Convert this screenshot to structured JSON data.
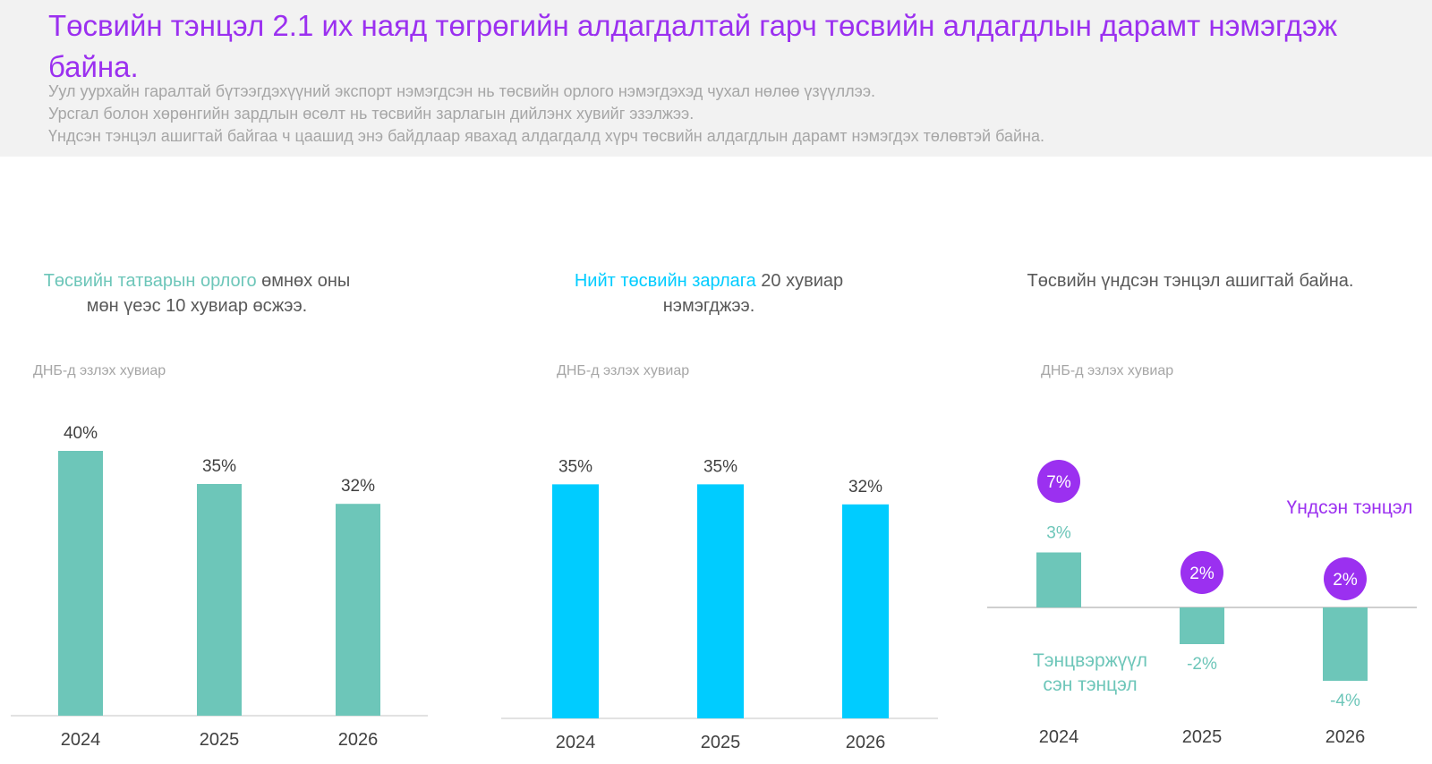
{
  "header": {
    "title": "Төсвийн тэнцэл 2.1 их наяд төгрөгийн алдагдалтай гарч төсвийн алдагдлын дарамт нэмэгдэж байна.",
    "subtitles": [
      "Уул уурхайн гаралтай бүтээгдэхүүний экспорт нэмэгдсэн нь төсвийн орлого нэмэгдэхэд чухал нөлөө үзүүллээ.",
      "Урсгал болон хөрөнгийн зардлын өсөлт нь төсвийн зарлагын дийлэнх хувийг эзэлжээ.",
      "Үндсэн тэнцэл ашигтай байгаа ч цаашид энэ байдлаар явахад алдагдалд хүрч төсвийн алдагдлын дарамт нэмэгдэх төлөвтэй байна."
    ]
  },
  "panels": {
    "revenue": {
      "title_highlight": "Төсвийн татварын орлого",
      "title_rest": " өмнөх оны мөн үеэс 10 хувиар өсжээ.",
      "unit": "ДНБ-д эзлэх хувиар"
    },
    "expenditure": {
      "title_highlight": "Нийт төсвийн зарлага",
      "title_rest": " 20 хувиар нэмэгджээ.",
      "unit": "ДНБ-д эзлэх хувиар"
    },
    "balance": {
      "title": "Төсвийн үндсэн тэнцэл ашигтай байна.",
      "unit": "ДНБ-д эзлэх хувиар"
    }
  },
  "colors": {
    "title": "#9b30f0",
    "teal": "#6dc6b9",
    "cyan": "#00ccff",
    "purple": "#9b30f0",
    "axis": "#d9d9d9",
    "text": "#404040"
  },
  "chart_data": [
    {
      "type": "bar",
      "categories": [
        "2024",
        "2025",
        "2026"
      ],
      "values": [
        40,
        35,
        32
      ],
      "labels": [
        "40%",
        "35%",
        "32%"
      ],
      "ylim": [
        0,
        40
      ]
    },
    {
      "type": "bar",
      "categories": [
        "2024",
        "2025",
        "2026"
      ],
      "values": [
        35,
        35,
        32
      ],
      "labels": [
        "35%",
        "35%",
        "32%"
      ],
      "ylim": [
        0,
        40
      ]
    },
    {
      "type": "bar",
      "categories": [
        "2024",
        "2025",
        "2026"
      ],
      "series": [
        {
          "name": "Тэнцвэржүүлсэн тэнцэл",
          "values": [
            3,
            -2,
            -4
          ],
          "labels": [
            "3%",
            "-2%",
            "-4%"
          ]
        },
        {
          "name": "Үндсэн тэнцэл",
          "values": [
            7,
            2,
            2
          ],
          "labels": [
            "7%",
            "2%",
            "2%"
          ]
        }
      ]
    }
  ]
}
